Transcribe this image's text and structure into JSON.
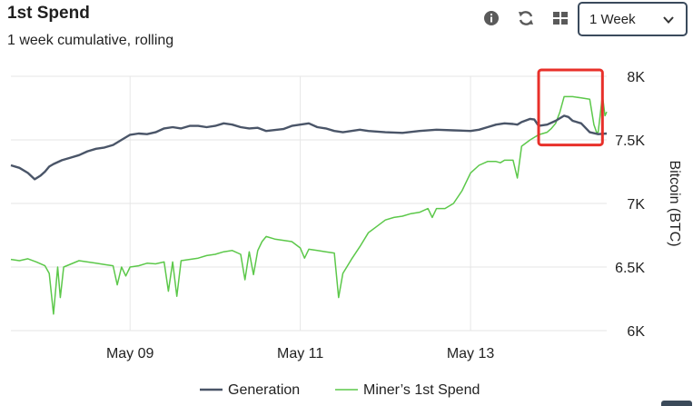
{
  "header": {
    "title": "1st Spend",
    "subtitle": "1 week cumulative, rolling"
  },
  "toolbar": {
    "icons": [
      "info-icon",
      "refresh-icon",
      "grid-icon"
    ],
    "range_value": "1 Week"
  },
  "colors": {
    "generation": "#4a5568",
    "first_spend": "#5cc84a",
    "highlight": "#e8302a",
    "grid": "#e6e6e6"
  },
  "chart_data": {
    "type": "line",
    "title": "",
    "xlabel": "",
    "ylabel": "Bitcoin (BTC)",
    "x_ticks": [
      {
        "label": "May 09",
        "value": 2
      },
      {
        "label": "May 11",
        "value": 4
      },
      {
        "label": "May 13",
        "value": 6
      }
    ],
    "y_ticks": [
      {
        "label": "6K",
        "value": 6000
      },
      {
        "label": "6.5K",
        "value": 6500
      },
      {
        "label": "7K",
        "value": 7000
      },
      {
        "label": "7.5K",
        "value": 7500
      },
      {
        "label": "8K",
        "value": 8000
      }
    ],
    "xlim": [
      0.6,
      7.6
    ],
    "ylim": [
      6000,
      8000
    ],
    "grid": true,
    "legend": "bottom-center",
    "highlight_box": {
      "x": [
        6.8,
        7.55
      ],
      "y": [
        7460,
        8050
      ]
    },
    "series": [
      {
        "name": "Generation",
        "color_key": "generation",
        "points": [
          [
            0.6,
            7300
          ],
          [
            0.7,
            7280
          ],
          [
            0.8,
            7240
          ],
          [
            0.88,
            7190
          ],
          [
            0.95,
            7220
          ],
          [
            1.0,
            7250
          ],
          [
            1.05,
            7290
          ],
          [
            1.1,
            7310
          ],
          [
            1.2,
            7340
          ],
          [
            1.3,
            7360
          ],
          [
            1.4,
            7380
          ],
          [
            1.5,
            7410
          ],
          [
            1.6,
            7430
          ],
          [
            1.7,
            7440
          ],
          [
            1.8,
            7460
          ],
          [
            1.9,
            7500
          ],
          [
            2.0,
            7540
          ],
          [
            2.1,
            7550
          ],
          [
            2.2,
            7545
          ],
          [
            2.3,
            7560
          ],
          [
            2.4,
            7590
          ],
          [
            2.5,
            7600
          ],
          [
            2.6,
            7590
          ],
          [
            2.7,
            7610
          ],
          [
            2.8,
            7610
          ],
          [
            2.9,
            7600
          ],
          [
            3.0,
            7610
          ],
          [
            3.1,
            7630
          ],
          [
            3.2,
            7620
          ],
          [
            3.3,
            7600
          ],
          [
            3.4,
            7590
          ],
          [
            3.5,
            7595
          ],
          [
            3.6,
            7570
          ],
          [
            3.8,
            7585
          ],
          [
            3.9,
            7610
          ],
          [
            4.0,
            7620
          ],
          [
            4.1,
            7630
          ],
          [
            4.2,
            7600
          ],
          [
            4.3,
            7590
          ],
          [
            4.4,
            7570
          ],
          [
            4.5,
            7560
          ],
          [
            4.6,
            7570
          ],
          [
            4.7,
            7580
          ],
          [
            4.8,
            7570
          ],
          [
            5.0,
            7560
          ],
          [
            5.2,
            7555
          ],
          [
            5.4,
            7570
          ],
          [
            5.6,
            7580
          ],
          [
            5.8,
            7575
          ],
          [
            6.0,
            7570
          ],
          [
            6.1,
            7580
          ],
          [
            6.2,
            7600
          ],
          [
            6.3,
            7620
          ],
          [
            6.4,
            7630
          ],
          [
            6.5,
            7625
          ],
          [
            6.55,
            7620
          ],
          [
            6.6,
            7640
          ],
          [
            6.7,
            7665
          ],
          [
            6.75,
            7660
          ],
          [
            6.8,
            7610
          ],
          [
            6.9,
            7620
          ],
          [
            7.0,
            7650
          ],
          [
            7.1,
            7690
          ],
          [
            7.15,
            7680
          ],
          [
            7.2,
            7650
          ],
          [
            7.3,
            7630
          ],
          [
            7.4,
            7560
          ],
          [
            7.5,
            7545
          ],
          [
            7.6,
            7550
          ]
        ]
      },
      {
        "name": "Miner’s 1st Spend",
        "color_key": "first_spend",
        "points": [
          [
            0.6,
            6560
          ],
          [
            0.7,
            6550
          ],
          [
            0.8,
            6565
          ],
          [
            0.9,
            6540
          ],
          [
            1.0,
            6510
          ],
          [
            1.05,
            6450
          ],
          [
            1.1,
            6130
          ],
          [
            1.15,
            6500
          ],
          [
            1.18,
            6260
          ],
          [
            1.22,
            6500
          ],
          [
            1.4,
            6550
          ],
          [
            1.5,
            6540
          ],
          [
            1.6,
            6530
          ],
          [
            1.7,
            6520
          ],
          [
            1.8,
            6510
          ],
          [
            1.85,
            6360
          ],
          [
            1.9,
            6500
          ],
          [
            1.95,
            6430
          ],
          [
            2.0,
            6500
          ],
          [
            2.1,
            6510
          ],
          [
            2.2,
            6530
          ],
          [
            2.3,
            6525
          ],
          [
            2.4,
            6540
          ],
          [
            2.45,
            6310
          ],
          [
            2.5,
            6540
          ],
          [
            2.55,
            6270
          ],
          [
            2.6,
            6550
          ],
          [
            2.7,
            6560
          ],
          [
            2.8,
            6570
          ],
          [
            2.9,
            6590
          ],
          [
            3.0,
            6600
          ],
          [
            3.1,
            6620
          ],
          [
            3.2,
            6630
          ],
          [
            3.3,
            6600
          ],
          [
            3.35,
            6400
          ],
          [
            3.4,
            6620
          ],
          [
            3.45,
            6440
          ],
          [
            3.5,
            6630
          ],
          [
            3.55,
            6700
          ],
          [
            3.6,
            6740
          ],
          [
            3.7,
            6720
          ],
          [
            3.8,
            6710
          ],
          [
            3.9,
            6700
          ],
          [
            4.0,
            6650
          ],
          [
            4.05,
            6570
          ],
          [
            4.1,
            6640
          ],
          [
            4.2,
            6630
          ],
          [
            4.3,
            6620
          ],
          [
            4.4,
            6610
          ],
          [
            4.45,
            6260
          ],
          [
            4.5,
            6450
          ],
          [
            4.6,
            6560
          ],
          [
            4.7,
            6660
          ],
          [
            4.8,
            6770
          ],
          [
            4.9,
            6820
          ],
          [
            5.0,
            6870
          ],
          [
            5.1,
            6890
          ],
          [
            5.2,
            6900
          ],
          [
            5.3,
            6920
          ],
          [
            5.4,
            6930
          ],
          [
            5.5,
            6960
          ],
          [
            5.55,
            6890
          ],
          [
            5.6,
            6960
          ],
          [
            5.7,
            6960
          ],
          [
            5.8,
            7000
          ],
          [
            5.9,
            7100
          ],
          [
            6.0,
            7240
          ],
          [
            6.1,
            7300
          ],
          [
            6.2,
            7330
          ],
          [
            6.3,
            7330
          ],
          [
            6.35,
            7320
          ],
          [
            6.4,
            7340
          ],
          [
            6.5,
            7340
          ],
          [
            6.55,
            7200
          ],
          [
            6.6,
            7450
          ],
          [
            6.7,
            7500
          ],
          [
            6.8,
            7540
          ],
          [
            6.9,
            7560
          ],
          [
            6.95,
            7590
          ],
          [
            7.0,
            7630
          ],
          [
            7.05,
            7720
          ],
          [
            7.1,
            7840
          ],
          [
            7.2,
            7840
          ],
          [
            7.3,
            7830
          ],
          [
            7.4,
            7820
          ],
          [
            7.45,
            7620
          ],
          [
            7.48,
            7560
          ],
          [
            7.5,
            7560
          ],
          [
            7.55,
            7850
          ],
          [
            7.58,
            7690
          ],
          [
            7.6,
            7720
          ]
        ]
      }
    ]
  }
}
